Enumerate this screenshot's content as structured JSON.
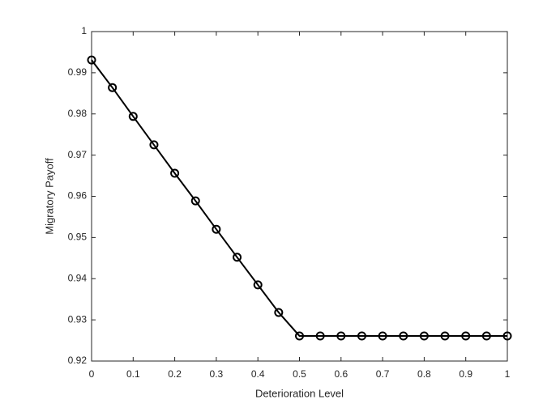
{
  "chart_data": {
    "type": "line",
    "x_label": "Deterioration Level",
    "y_label": "Migratory Payoff",
    "x": [
      0,
      0.05,
      0.1,
      0.15,
      0.2,
      0.25,
      0.3,
      0.35,
      0.4,
      0.45,
      0.5,
      0.55,
      0.6,
      0.65,
      0.7,
      0.75,
      0.8,
      0.85,
      0.9,
      0.95,
      1
    ],
    "series": [
      {
        "name": "Migratory Payoff",
        "color": "#000000",
        "values": [
          0.9931,
          0.9864,
          0.9794,
          0.9725,
          0.9656,
          0.9589,
          0.952,
          0.9452,
          0.9385,
          0.9318,
          0.9261,
          0.9261,
          0.9261,
          0.9261,
          0.9261,
          0.9261,
          0.9261,
          0.9261,
          0.9261,
          0.9261,
          0.9261
        ]
      }
    ],
    "xlim": [
      0,
      1
    ],
    "ylim": [
      0.92,
      1
    ],
    "xticks": [
      0,
      0.1,
      0.2,
      0.3,
      0.4,
      0.5,
      0.6,
      0.7,
      0.8,
      0.9,
      1
    ],
    "yticks": [
      0.92,
      0.93,
      0.94,
      0.95,
      0.96,
      0.97,
      0.98,
      0.99,
      1
    ],
    "grid": false,
    "marker": "circle"
  }
}
